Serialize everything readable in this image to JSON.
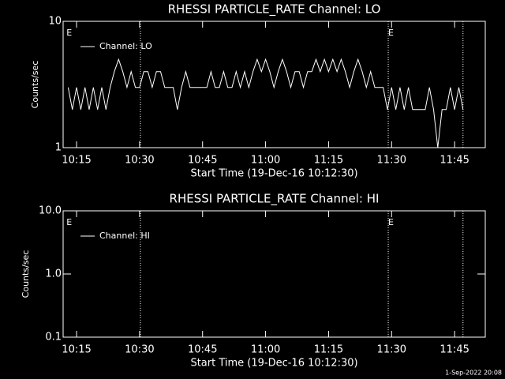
{
  "charts": [
    {
      "chart_data": {
        "type": "line",
        "title": "RHESSI PARTICLE_RATE Channel: LO",
        "xlabel": "Start Time (19-Dec-16 10:12:30)",
        "ylabel": "Counts/sec",
        "log_y": true,
        "xlim": [
          11.8,
          112.3
        ],
        "xticks": [
          {
            "value": 15,
            "label": "10:15"
          },
          {
            "value": 30,
            "label": "10:30"
          },
          {
            "value": 45,
            "label": "10:45"
          },
          {
            "value": 60,
            "label": "11:00"
          },
          {
            "value": 75,
            "label": "11:15"
          },
          {
            "value": 90,
            "label": "11:30"
          },
          {
            "value": 105,
            "label": "11:45"
          }
        ],
        "ylim": [
          1,
          10
        ],
        "yticks": [
          1,
          10
        ],
        "vlines": [
          30.2,
          89.2,
          107
        ],
        "annotations": [
          {
            "x": 12.6,
            "text": "E"
          },
          {
            "x": 89.2,
            "text": "E"
          }
        ],
        "legend": "upper left",
        "x": [
          13,
          14,
          15,
          16,
          17,
          18,
          19,
          20,
          21,
          22,
          23,
          24,
          25,
          26,
          27,
          28,
          29,
          30,
          31,
          32,
          33,
          34,
          35,
          36,
          37,
          38,
          39,
          40,
          41,
          42,
          43,
          44,
          45,
          46,
          47,
          48,
          49,
          50,
          51,
          52,
          53,
          54,
          55,
          56,
          57,
          58,
          59,
          60,
          61,
          62,
          63,
          64,
          65,
          66,
          67,
          68,
          69,
          70,
          71,
          72,
          73,
          74,
          75,
          76,
          77,
          78,
          79,
          80,
          81,
          82,
          83,
          84,
          85,
          86,
          87,
          88,
          89,
          90,
          91,
          92,
          93,
          94,
          95,
          96,
          97,
          98,
          99,
          100,
          101,
          102,
          103,
          104,
          105,
          106,
          107
        ],
        "series": [
          {
            "name": "Channel: LO",
            "color": "#ffffff",
            "values": [
              3,
              2,
              3,
              2,
              3,
              2,
              3,
              2,
              3,
              2,
              3,
              4,
              5,
              4,
              3,
              4,
              3,
              3,
              4,
              4,
              3,
              4,
              4,
              3,
              3,
              3,
              2,
              3,
              4,
              3,
              3,
              3,
              3,
              3,
              4,
              3,
              3,
              4,
              3,
              3,
              4,
              3,
              4,
              3,
              4,
              5,
              4,
              5,
              4,
              3,
              4,
              5,
              4,
              3,
              4,
              4,
              3,
              4,
              4,
              5,
              4,
              5,
              4,
              5,
              4,
              5,
              4,
              3,
              4,
              5,
              4,
              3,
              4,
              3,
              3,
              3,
              2,
              3,
              2,
              3,
              2,
              3,
              2,
              2,
              2,
              2,
              3,
              2,
              1,
              2,
              2,
              3,
              2,
              3,
              2
            ]
          }
        ]
      }
    },
    {
      "chart_data": {
        "type": "line",
        "title": "RHESSI PARTICLE_RATE Channel: HI",
        "xlabel": "Start Time (19-Dec-16 10:12:30)",
        "ylabel": "Counts/sec",
        "log_y": true,
        "xlim": [
          11.8,
          112.3
        ],
        "xticks": [
          {
            "value": 15,
            "label": "10:15"
          },
          {
            "value": 30,
            "label": "10:30"
          },
          {
            "value": 45,
            "label": "10:45"
          },
          {
            "value": 60,
            "label": "11:00"
          },
          {
            "value": 75,
            "label": "11:15"
          },
          {
            "value": 90,
            "label": "11:30"
          },
          {
            "value": 105,
            "label": "11:45"
          }
        ],
        "ylim": [
          0.1,
          10
        ],
        "yticks": [
          {
            "value": 0.1,
            "label": "0.1"
          },
          {
            "value": 1,
            "label": "1.0"
          },
          {
            "value": 10,
            "label": "10.0"
          }
        ],
        "vlines": [
          30.2,
          89.2,
          107
        ],
        "annotations": [
          {
            "x": 12.6,
            "text": "E"
          },
          {
            "x": 89.2,
            "text": "E"
          }
        ],
        "legend": "upper left",
        "x": [],
        "series": [
          {
            "name": "Channel: HI",
            "color": "#ffffff",
            "values": []
          }
        ]
      }
    }
  ],
  "footer": "1-Sep-2022 20:08"
}
